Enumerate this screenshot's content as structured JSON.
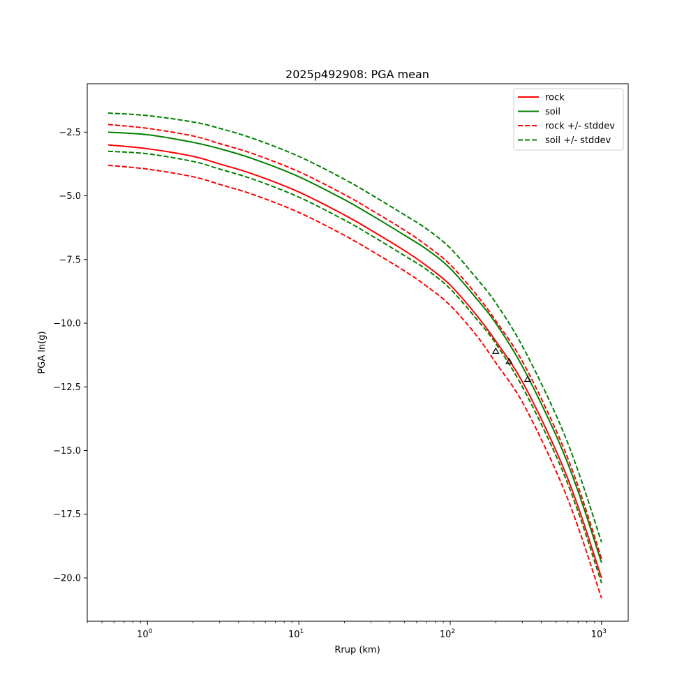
{
  "chart_data": {
    "type": "line",
    "title": "2025p492908: PGA mean",
    "xlabel": "Rrup (km)",
    "ylabel": "PGA ln(g)",
    "xscale": "log",
    "xlim": [
      0.4,
      1500
    ],
    "ylim": [
      -21.7,
      -0.6
    ],
    "x_ticks": [
      {
        "value": 1,
        "base": "10",
        "exp": "0"
      },
      {
        "value": 10,
        "base": "10",
        "exp": "1"
      },
      {
        "value": 100,
        "base": "10",
        "exp": "2"
      },
      {
        "value": 1000,
        "base": "10",
        "exp": "3"
      }
    ],
    "y_ticks": [
      {
        "value": -2.5,
        "label": "−2.5"
      },
      {
        "value": -5.0,
        "label": "−5.0"
      },
      {
        "value": -7.5,
        "label": "−7.5"
      },
      {
        "value": -10.0,
        "label": "−10.0"
      },
      {
        "value": -12.5,
        "label": "−12.5"
      },
      {
        "value": -15.0,
        "label": "−15.0"
      },
      {
        "value": -17.5,
        "label": "−17.5"
      },
      {
        "value": -20.0,
        "label": "−20.0"
      }
    ],
    "x": [
      0.55,
      1,
      2,
      3,
      5,
      10,
      20,
      30,
      50,
      70,
      100,
      150,
      200,
      300,
      500,
      700,
      1000
    ],
    "series": [
      {
        "name": "rock",
        "color": "#ff0000",
        "style": "solid",
        "values": [
          -3.0,
          -3.15,
          -3.45,
          -3.75,
          -4.15,
          -4.85,
          -5.75,
          -6.35,
          -7.15,
          -7.75,
          -8.5,
          -9.7,
          -10.7,
          -12.3,
          -15.0,
          -17.2,
          -20.0
        ]
      },
      {
        "name": "soil",
        "color": "#008000",
        "style": "solid",
        "values": [
          -2.5,
          -2.6,
          -2.9,
          -3.15,
          -3.55,
          -4.25,
          -5.15,
          -5.75,
          -6.55,
          -7.1,
          -7.85,
          -9.05,
          -10.0,
          -11.7,
          -14.4,
          -16.6,
          -19.4
        ]
      },
      {
        "name": "rock +/- stddev",
        "color": "#ff0000",
        "style": "dashed",
        "values": [
          -2.2,
          -2.35,
          -2.65,
          -2.95,
          -3.35,
          -4.05,
          -4.95,
          -5.55,
          -6.35,
          -6.95,
          -7.7,
          -8.9,
          -9.9,
          -11.5,
          -14.2,
          -16.4,
          -19.25
        ]
      },
      {
        "name": "",
        "color": "#ff0000",
        "style": "dashed",
        "values": [
          -3.8,
          -3.95,
          -4.25,
          -4.55,
          -4.95,
          -5.65,
          -6.55,
          -7.15,
          -7.95,
          -8.55,
          -9.3,
          -10.5,
          -11.55,
          -13.1,
          -15.8,
          -18.0,
          -20.8
        ]
      },
      {
        "name": "soil +/- stddev",
        "color": "#008000",
        "style": "dashed",
        "values": [
          -1.75,
          -1.85,
          -2.1,
          -2.35,
          -2.75,
          -3.45,
          -4.35,
          -4.95,
          -5.75,
          -6.3,
          -7.05,
          -8.25,
          -9.2,
          -10.9,
          -13.6,
          -15.8,
          -18.6
        ]
      },
      {
        "name": "",
        "color": "#008000",
        "style": "dashed",
        "values": [
          -3.25,
          -3.35,
          -3.65,
          -3.95,
          -4.35,
          -5.05,
          -5.95,
          -6.55,
          -7.35,
          -7.9,
          -8.65,
          -9.85,
          -10.8,
          -12.5,
          -15.2,
          -17.4,
          -20.2
        ]
      }
    ],
    "observations": [
      {
        "x": 200,
        "y": -11.1
      },
      {
        "x": 245,
        "y": -11.5
      },
      {
        "x": 325,
        "y": -12.2
      }
    ],
    "legend": {
      "placement": "top-right",
      "entries": [
        {
          "label": "rock",
          "color": "#ff0000",
          "style": "solid"
        },
        {
          "label": "soil",
          "color": "#008000",
          "style": "solid"
        },
        {
          "label": "rock +/- stddev",
          "color": "#ff0000",
          "style": "dashed"
        },
        {
          "label": "soil +/- stddev",
          "color": "#008000",
          "style": "dashed"
        }
      ]
    },
    "grid": false
  }
}
